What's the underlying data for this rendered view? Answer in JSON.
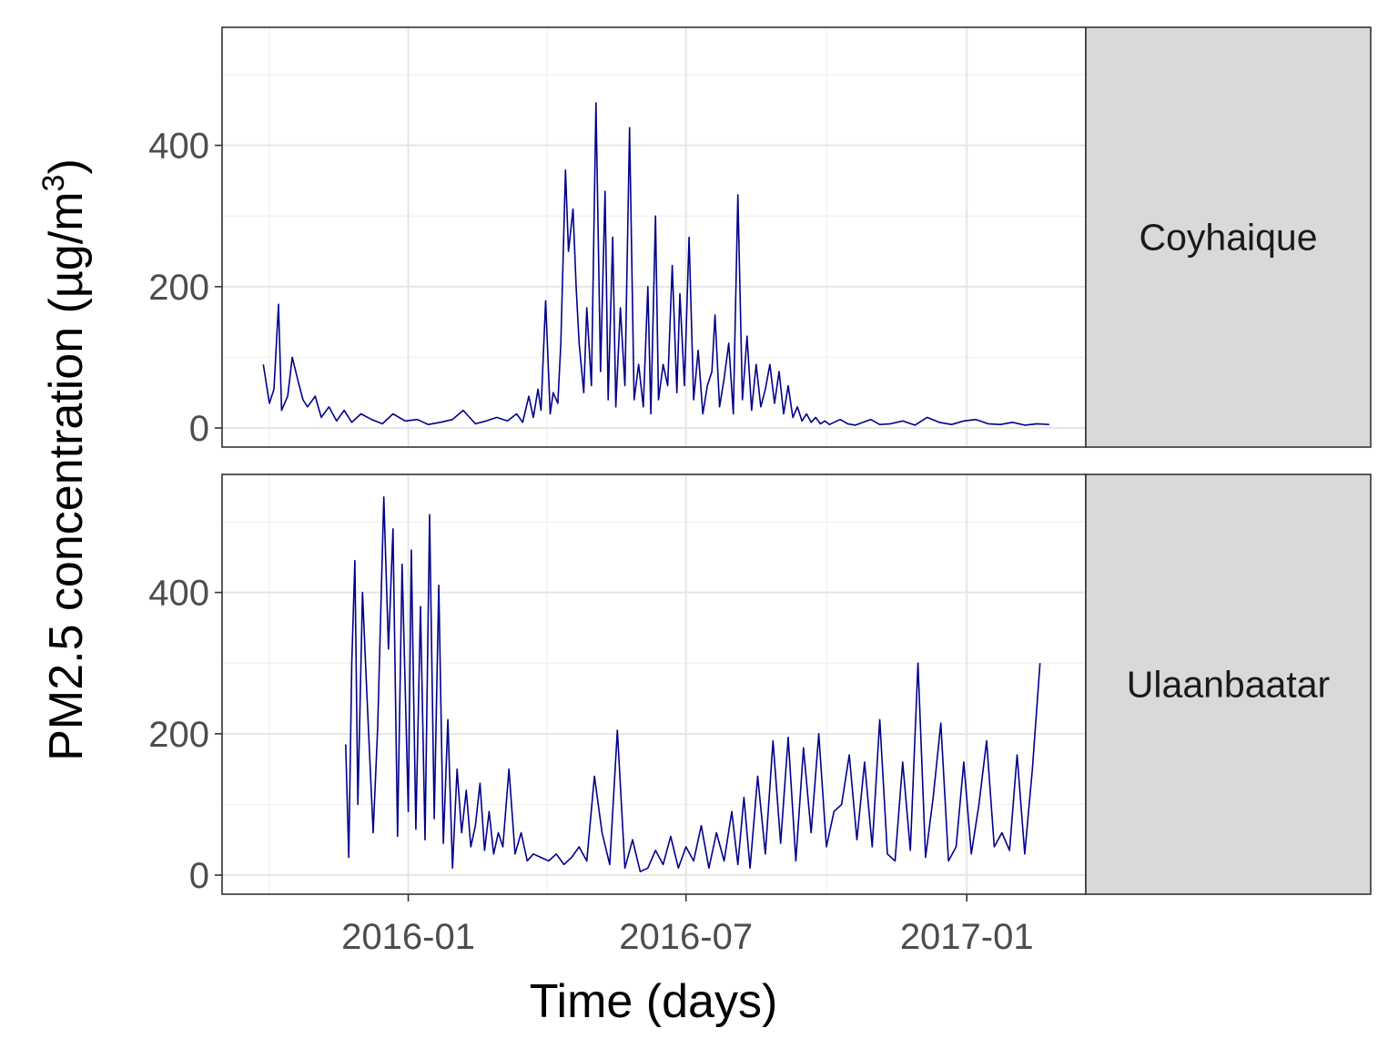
{
  "chart_data": {
    "type": "line",
    "xlabel": "Time (days)",
    "ylabel_main": "PM2.5 concentration (µg/m",
    "ylabel_sup": "3",
    "ylabel_close": ")",
    "x_tick_labels": [
      "2016-01",
      "2016-07",
      "2017-01"
    ],
    "x_ticks": [
      "2016-01-01",
      "2016-07-01",
      "2017-01-01"
    ],
    "xlim": [
      "2015-09-01",
      "2017-03-20"
    ],
    "ylim": [
      -27,
      567
    ],
    "y_ticks": [
      0,
      200,
      400
    ],
    "grid": true,
    "line_color": "#00008B",
    "facet_strip_color": "#d9d9d9",
    "facets": [
      {
        "label": "Coyhaique",
        "x": [
          "2015-09-28",
          "2015-10-02",
          "2015-10-05",
          "2015-10-08",
          "2015-10-10",
          "2015-10-14",
          "2015-10-17",
          "2015-10-21",
          "2015-10-24",
          "2015-10-27",
          "2015-11-01",
          "2015-11-05",
          "2015-11-10",
          "2015-11-15",
          "2015-11-20",
          "2015-11-25",
          "2015-12-01",
          "2015-12-08",
          "2015-12-15",
          "2015-12-22",
          "2015-12-30",
          "2016-01-07",
          "2016-01-14",
          "2016-01-22",
          "2016-01-30",
          "2016-02-06",
          "2016-02-14",
          "2016-02-21",
          "2016-02-28",
          "2016-03-06",
          "2016-03-12",
          "2016-03-16",
          "2016-03-20",
          "2016-03-23",
          "2016-03-26",
          "2016-03-28",
          "2016-03-31",
          "2016-04-03",
          "2016-04-05",
          "2016-04-08",
          "2016-04-10",
          "2016-04-13",
          "2016-04-15",
          "2016-04-18",
          "2016-04-20",
          "2016-04-22",
          "2016-04-25",
          "2016-04-27",
          "2016-04-30",
          "2016-05-03",
          "2016-05-06",
          "2016-05-09",
          "2016-05-11",
          "2016-05-14",
          "2016-05-16",
          "2016-05-19",
          "2016-05-22",
          "2016-05-25",
          "2016-05-28",
          "2016-05-31",
          "2016-06-03",
          "2016-06-06",
          "2016-06-08",
          "2016-06-11",
          "2016-06-13",
          "2016-06-16",
          "2016-06-19",
          "2016-06-22",
          "2016-06-25",
          "2016-06-27",
          "2016-06-30",
          "2016-07-03",
          "2016-07-06",
          "2016-07-09",
          "2016-07-12",
          "2016-07-15",
          "2016-07-18",
          "2016-07-20",
          "2016-07-23",
          "2016-07-26",
          "2016-07-29",
          "2016-08-01",
          "2016-08-04",
          "2016-08-07",
          "2016-08-10",
          "2016-08-13",
          "2016-08-16",
          "2016-08-19",
          "2016-08-22",
          "2016-08-25",
          "2016-08-28",
          "2016-08-31",
          "2016-09-03",
          "2016-09-06",
          "2016-09-09",
          "2016-09-12",
          "2016-09-15",
          "2016-09-18",
          "2016-09-21",
          "2016-09-24",
          "2016-09-27",
          "2016-09-30",
          "2016-10-03",
          "2016-10-06",
          "2016-10-10",
          "2016-10-15",
          "2016-10-20",
          "2016-10-25",
          "2016-10-30",
          "2016-11-05",
          "2016-11-12",
          "2016-11-20",
          "2016-11-28",
          "2016-12-06",
          "2016-12-14",
          "2016-12-22",
          "2016-12-30",
          "2017-01-07",
          "2017-01-15",
          "2017-01-23",
          "2017-01-31",
          "2017-02-08",
          "2017-02-16",
          "2017-02-24"
        ],
        "y": [
          90,
          35,
          55,
          175,
          25,
          45,
          100,
          65,
          40,
          30,
          45,
          15,
          30,
          10,
          25,
          8,
          20,
          12,
          6,
          20,
          10,
          12,
          5,
          8,
          12,
          25,
          6,
          10,
          15,
          10,
          20,
          8,
          45,
          15,
          55,
          25,
          180,
          20,
          50,
          35,
          120,
          365,
          250,
          310,
          200,
          120,
          50,
          170,
          60,
          460,
          80,
          335,
          40,
          270,
          30,
          170,
          60,
          425,
          40,
          90,
          30,
          200,
          20,
          300,
          40,
          90,
          60,
          230,
          50,
          190,
          60,
          270,
          40,
          110,
          20,
          60,
          80,
          160,
          30,
          70,
          120,
          20,
          330,
          40,
          130,
          25,
          90,
          30,
          55,
          90,
          35,
          80,
          20,
          60,
          15,
          30,
          10,
          20,
          8,
          15,
          6,
          10,
          5,
          8,
          12,
          6,
          4,
          8,
          12,
          5,
          6,
          10,
          4,
          15,
          8,
          5,
          10,
          12,
          6,
          5,
          8,
          4,
          6,
          5
        ],
        "y_alt_note": ""
      },
      {
        "label": "Ulaanbaatar",
        "x": [
          "2015-11-21",
          "2015-11-23",
          "2015-11-25",
          "2015-11-27",
          "2015-11-29",
          "2015-12-02",
          "2015-12-05",
          "2015-12-09",
          "2015-12-12",
          "2015-12-16",
          "2015-12-19",
          "2015-12-22",
          "2015-12-25",
          "2015-12-28",
          "2016-01-01",
          "2016-01-03",
          "2016-01-06",
          "2016-01-09",
          "2016-01-12",
          "2016-01-15",
          "2016-01-18",
          "2016-01-21",
          "2016-01-24",
          "2016-01-27",
          "2016-01-30",
          "2016-02-02",
          "2016-02-05",
          "2016-02-08",
          "2016-02-11",
          "2016-02-14",
          "2016-02-17",
          "2016-02-20",
          "2016-02-23",
          "2016-02-26",
          "2016-02-29",
          "2016-03-03",
          "2016-03-07",
          "2016-03-11",
          "2016-03-15",
          "2016-03-19",
          "2016-03-23",
          "2016-03-28",
          "2016-04-02",
          "2016-04-07",
          "2016-04-12",
          "2016-04-17",
          "2016-04-22",
          "2016-04-27",
          "2016-05-02",
          "2016-05-07",
          "2016-05-12",
          "2016-05-17",
          "2016-05-22",
          "2016-05-27",
          "2016-06-01",
          "2016-06-06",
          "2016-06-11",
          "2016-06-16",
          "2016-06-21",
          "2016-06-26",
          "2016-07-01",
          "2016-07-06",
          "2016-07-11",
          "2016-07-16",
          "2016-07-21",
          "2016-07-26",
          "2016-07-31",
          "2016-08-04",
          "2016-08-08",
          "2016-08-12",
          "2016-08-17",
          "2016-08-22",
          "2016-08-27",
          "2016-09-01",
          "2016-09-06",
          "2016-09-11",
          "2016-09-16",
          "2016-09-21",
          "2016-09-26",
          "2016-10-01",
          "2016-10-06",
          "2016-10-11",
          "2016-10-16",
          "2016-10-21",
          "2016-10-26",
          "2016-10-31",
          "2016-11-05",
          "2016-11-10",
          "2016-11-15",
          "2016-11-20",
          "2016-11-25",
          "2016-11-30",
          "2016-12-05",
          "2016-12-10",
          "2016-12-15",
          "2016-12-20",
          "2016-12-25",
          "2016-12-30",
          "2017-01-04",
          "2017-01-09",
          "2017-01-14",
          "2017-01-19",
          "2017-01-24",
          "2017-01-29",
          "2017-02-03",
          "2017-02-08",
          "2017-02-13",
          "2017-02-18"
        ],
        "y": [
          185,
          25,
          300,
          445,
          100,
          400,
          250,
          60,
          210,
          535,
          320,
          490,
          55,
          440,
          90,
          460,
          65,
          380,
          50,
          510,
          80,
          410,
          45,
          220,
          10,
          150,
          60,
          120,
          40,
          70,
          130,
          35,
          90,
          30,
          60,
          40,
          150,
          30,
          60,
          20,
          30,
          25,
          20,
          30,
          15,
          25,
          40,
          20,
          140,
          60,
          15,
          205,
          10,
          50,
          5,
          10,
          35,
          15,
          55,
          10,
          40,
          20,
          70,
          10,
          60,
          20,
          90,
          15,
          110,
          10,
          140,
          30,
          190,
          45,
          195,
          20,
          180,
          60,
          200,
          40,
          90,
          100,
          170,
          50,
          160,
          40,
          220,
          30,
          20,
          160,
          35,
          300,
          25,
          110,
          215,
          20,
          40,
          160,
          30,
          100,
          190,
          40,
          60,
          35,
          170,
          30,
          150,
          300
        ],
        "y_alt_note": ""
      }
    ]
  }
}
